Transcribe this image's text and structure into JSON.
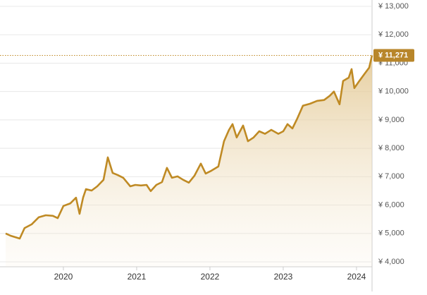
{
  "chart_data": {
    "type": "area",
    "x": [
      2019.212,
      2019.279,
      2019.404,
      2019.471,
      2019.567,
      2019.663,
      2019.76,
      2019.856,
      2019.923,
      2020,
      2020.096,
      2020.173,
      2020.221,
      2020.269,
      2020.308,
      2020.385,
      2020.462,
      2020.548,
      2020.606,
      2020.673,
      2020.74,
      2020.817,
      2020.913,
      2020.981,
      2021.058,
      2021.135,
      2021.192,
      2021.269,
      2021.346,
      2021.413,
      2021.481,
      2021.558,
      2021.635,
      2021.712,
      2021.788,
      2021.875,
      2021.942,
      2022.019,
      2022.115,
      2022.192,
      2022.26,
      2022.308,
      2022.365,
      2022.452,
      2022.519,
      2022.596,
      2022.673,
      2022.75,
      2022.837,
      2022.933,
      2023,
      2023.058,
      2023.125,
      2023.192,
      2023.269,
      2023.365,
      2023.462,
      2023.558,
      2023.635,
      2023.692,
      2023.769,
      2023.817,
      2023.894,
      2023.933,
      2023.971,
      2024.038,
      2024.115,
      2024.173,
      2024.212
    ],
    "values": [
      5000,
      4920,
      4820,
      5190,
      5320,
      5570,
      5640,
      5620,
      5540,
      5970,
      6060,
      6260,
      5690,
      6260,
      6560,
      6510,
      6660,
      6890,
      7680,
      7130,
      7060,
      6960,
      6660,
      6710,
      6690,
      6710,
      6490,
      6710,
      6810,
      7310,
      6960,
      7010,
      6890,
      6790,
      7030,
      7460,
      7110,
      7210,
      7360,
      8250,
      8650,
      8850,
      8380,
      8800,
      8250,
      8380,
      8600,
      8510,
      8650,
      8510,
      8600,
      8850,
      8700,
      9050,
      9500,
      9570,
      9670,
      9700,
      9850,
      10000,
      9550,
      10370,
      10490,
      10790,
      10120,
      10370,
      10640,
      10840,
      11271
    ],
    "color": "#bf8a24",
    "xlim": [
      2019.212,
      2024.212
    ],
    "xticks": [
      2020,
      2021,
      2022,
      2023,
      2024
    ],
    "ylim": [
      4000,
      13000
    ],
    "yticks": [
      {
        "value": 4000,
        "label": "¥ 4,000"
      },
      {
        "value": 5000,
        "label": "¥ 5,000"
      },
      {
        "value": 6000,
        "label": "¥ 6,000"
      },
      {
        "value": 7000,
        "label": "¥ 7,000"
      },
      {
        "value": 8000,
        "label": "¥ 8,000"
      },
      {
        "value": 9000,
        "label": "¥ 9,000"
      },
      {
        "value": 10000,
        "label": "¥ 10,000"
      },
      {
        "value": 11000,
        "label": "¥ 11,000"
      },
      {
        "value": 12000,
        "label": "¥ 12,000"
      },
      {
        "value": 13000,
        "label": "¥ 13,000"
      }
    ],
    "grid": true,
    "last_value": {
      "value": 11271,
      "label": "¥ 11,271"
    }
  }
}
